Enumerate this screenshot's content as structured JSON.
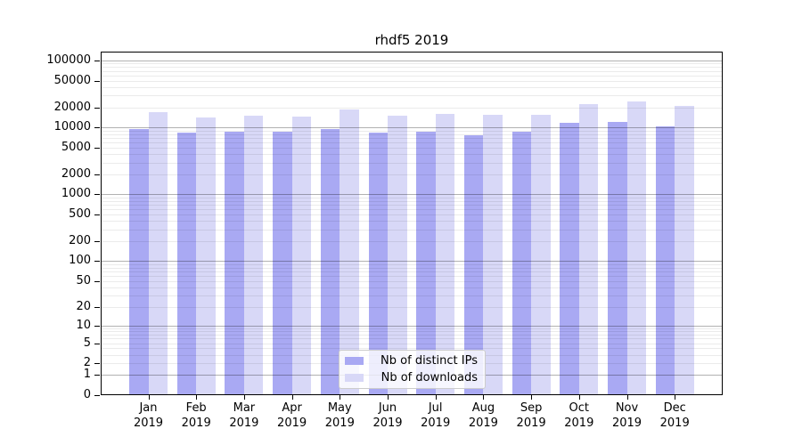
{
  "chart_data": {
    "type": "bar",
    "title": "rhdf5 2019",
    "categories": [
      "Jan",
      "Feb",
      "Mar",
      "Apr",
      "May",
      "Jun",
      "Jul",
      "Aug",
      "Sep",
      "Oct",
      "Nov",
      "Dec"
    ],
    "year_label": "2019",
    "series": [
      {
        "name": "Nb of distinct IPs",
        "color": "#a9a9f3",
        "values": [
          9600,
          8300,
          8600,
          8600,
          9500,
          8300,
          8600,
          7700,
          8700,
          11600,
          12000,
          10500
        ]
      },
      {
        "name": "Nb of downloads",
        "color": "#d8d8f7",
        "values": [
          17000,
          14200,
          15000,
          14700,
          18700,
          15000,
          15800,
          15300,
          15500,
          22500,
          24200,
          20800
        ]
      }
    ],
    "xlabel": "",
    "ylabel": "",
    "y_ticks": [
      0,
      1,
      2,
      5,
      10,
      20,
      50,
      100,
      200,
      500,
      1000,
      2000,
      5000,
      10000,
      20000,
      50000,
      100000
    ],
    "y_scale": "log10(1+x)",
    "ylim": [
      0,
      136000
    ],
    "grid": "horizontal major gridlines at powers of 10, faint log minor gridlines, drawn over bars",
    "legend_position": "lower center"
  }
}
